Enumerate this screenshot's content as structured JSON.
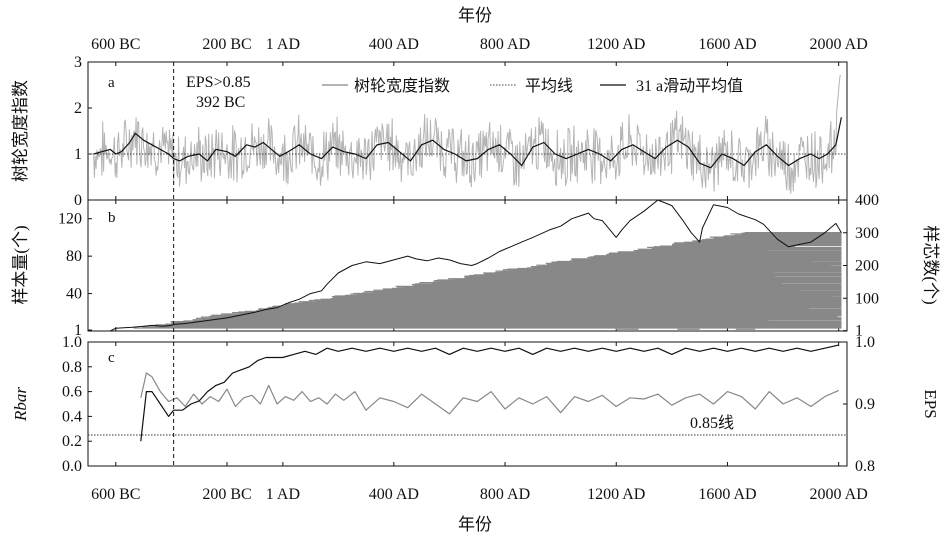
{
  "x_axis": {
    "title": "年份",
    "ticks": [
      {
        "year": -600,
        "label": "600 BC"
      },
      {
        "year": -200,
        "label": "200 BC"
      },
      {
        "year": 1,
        "label": "1 AD"
      },
      {
        "year": 400,
        "label": "400 AD"
      },
      {
        "year": 800,
        "label": "800 AD"
      },
      {
        "year": 1200,
        "label": "1200 AD"
      },
      {
        "year": 1600,
        "label": "1600 AD"
      },
      {
        "year": 2000,
        "label": "2000 AD"
      }
    ],
    "range": [
      -700,
      2030
    ]
  },
  "eps_marker": {
    "year": -392,
    "label_line1": "EPS>0.85",
    "label_line2": "392 BC"
  },
  "chart_data": [
    {
      "panel_label": "a",
      "type": "line",
      "ylabel": "树轮宽度指数",
      "ylim": [
        0,
        3
      ],
      "yticks": [
        0,
        1,
        2,
        3
      ],
      "mean_line": 1.0,
      "legend": {
        "placement": "top",
        "series_index_label": "树轮宽度指数",
        "mean_label": "平均线",
        "smooth_label": "31 a滑动平均值"
      },
      "colors": {
        "index": "#b4b4b4",
        "smooth": "#111111",
        "mean": "#444444"
      },
      "series": [
        {
          "name": "31 a滑动平均值",
          "x": [
            -680,
            -650,
            -620,
            -600,
            -580,
            -550,
            -530,
            -500,
            -470,
            -440,
            -410,
            -392,
            -370,
            -340,
            -300,
            -270,
            -240,
            -200,
            -170,
            -130,
            -100,
            -70,
            -40,
            -10,
            20,
            60,
            100,
            140,
            180,
            220,
            260,
            300,
            340,
            380,
            420,
            460,
            500,
            540,
            580,
            620,
            660,
            700,
            740,
            780,
            820,
            860,
            900,
            940,
            980,
            1020,
            1060,
            1100,
            1140,
            1180,
            1220,
            1260,
            1300,
            1340,
            1380,
            1420,
            1460,
            1500,
            1540,
            1580,
            1620,
            1660,
            1700,
            1740,
            1780,
            1820,
            1860,
            1900,
            1930,
            1960,
            1990,
            2010
          ],
          "values": [
            1.0,
            1.05,
            1.1,
            1.0,
            1.05,
            1.25,
            1.45,
            1.3,
            1.2,
            1.1,
            1.0,
            0.9,
            0.85,
            0.95,
            1.0,
            0.85,
            1.1,
            1.05,
            0.95,
            1.2,
            1.15,
            1.25,
            1.1,
            0.95,
            1.05,
            1.2,
            1.0,
            0.9,
            1.15,
            1.05,
            1.0,
            0.9,
            1.2,
            1.25,
            1.05,
            0.85,
            1.2,
            1.3,
            1.1,
            1.0,
            0.85,
            0.9,
            1.1,
            1.2,
            1.0,
            0.75,
            1.15,
            1.25,
            1.0,
            0.9,
            1.0,
            1.1,
            1.0,
            0.85,
            1.1,
            1.2,
            1.05,
            0.9,
            1.15,
            1.3,
            1.15,
            0.8,
            0.7,
            1.0,
            0.9,
            0.75,
            1.05,
            1.2,
            0.95,
            0.75,
            0.9,
            1.0,
            0.9,
            1.0,
            1.2,
            1.8
          ]
        },
        {
          "name": "树轮宽度指数",
          "envelope": "±0.55 around smooth",
          "end_peak": 2.6
        }
      ]
    },
    {
      "panel_label": "b",
      "type": "line",
      "ylabel": "样本量(个)",
      "y2label": "样芯数(个)",
      "ylim": [
        0,
        140
      ],
      "yticks": [
        1,
        40,
        80,
        120
      ],
      "y2lim": [
        0,
        400
      ],
      "y2ticks": [
        1,
        100,
        200,
        300,
        400
      ],
      "colors": {
        "sample_depth": "#111111",
        "core_spans": "#888888"
      },
      "series": [
        {
          "name": "样本量",
          "x": [
            -680,
            -620,
            -600,
            -540,
            -500,
            -470,
            -430,
            -400,
            -392,
            -350,
            -300,
            -250,
            -200,
            -150,
            -100,
            -60,
            -20,
            20,
            60,
            100,
            140,
            160,
            200,
            250,
            300,
            350,
            400,
            450,
            480,
            520,
            560,
            600,
            640,
            680,
            700,
            740,
            780,
            820,
            860,
            900,
            960,
            1000,
            1040,
            1080,
            1100,
            1120,
            1150,
            1200,
            1220,
            1250,
            1300,
            1350,
            1400,
            1440,
            1470,
            1500,
            1510,
            1550,
            1600,
            1640,
            1700,
            1730,
            1780,
            1820,
            1850,
            1900,
            1950,
            1990,
            2010
          ],
          "values": [
            0,
            0,
            3,
            4,
            5,
            6,
            5,
            6,
            7,
            8,
            10,
            12,
            14,
            17,
            20,
            23,
            25,
            30,
            34,
            40,
            43,
            50,
            62,
            70,
            74,
            72,
            76,
            80,
            77,
            75,
            78,
            76,
            72,
            70,
            72,
            78,
            85,
            90,
            95,
            100,
            108,
            112,
            120,
            124,
            126,
            120,
            118,
            100,
            108,
            118,
            128,
            140,
            134,
            118,
            105,
            95,
            110,
            135,
            132,
            125,
            119,
            114,
            98,
            90,
            92,
            95,
            105,
            115,
            105
          ]
        },
        {
          "name": "样芯数",
          "x": [
            -680,
            -500,
            -392,
            -300,
            -100,
            100,
            300,
            500,
            700,
            900,
            1100,
            1300,
            1500,
            1700,
            1900,
            2010
          ],
          "values": [
            1,
            5,
            12,
            20,
            35,
            55,
            80,
            100,
            120,
            150,
            200,
            250,
            290,
            310,
            320,
            315
          ]
        }
      ]
    },
    {
      "panel_label": "c",
      "type": "line",
      "ylabel": "Rbar",
      "y2label": "EPS",
      "ylim": [
        0.0,
        1.0
      ],
      "yticks": [
        0.0,
        0.2,
        0.4,
        0.6,
        0.8,
        1.0
      ],
      "y2lim": [
        0.8,
        1.0
      ],
      "y2ticks": [
        0.8,
        0.9,
        1.0
      ],
      "threshold": {
        "value": 0.85,
        "axis": "y2",
        "label": "0.85线"
      },
      "colors": {
        "rbar": "#888888",
        "eps": "#111111"
      },
      "series": [
        {
          "name": "Rbar",
          "x": [
            -510,
            -490,
            -470,
            -440,
            -410,
            -380,
            -350,
            -320,
            -290,
            -260,
            -230,
            -200,
            -170,
            -140,
            -110,
            -80,
            -50,
            -20,
            10,
            40,
            70,
            100,
            130,
            160,
            190,
            220,
            260,
            300,
            350,
            400,
            450,
            500,
            550,
            600,
            650,
            700,
            750,
            800,
            850,
            900,
            950,
            1000,
            1050,
            1100,
            1150,
            1200,
            1250,
            1300,
            1350,
            1400,
            1450,
            1500,
            1550,
            1600,
            1650,
            1700,
            1750,
            1800,
            1850,
            1900,
            1950,
            2000
          ],
          "values": [
            0.55,
            0.75,
            0.72,
            0.6,
            0.52,
            0.55,
            0.48,
            0.58,
            0.5,
            0.56,
            0.52,
            0.62,
            0.48,
            0.55,
            0.57,
            0.5,
            0.65,
            0.5,
            0.56,
            0.53,
            0.6,
            0.52,
            0.55,
            0.5,
            0.58,
            0.53,
            0.6,
            0.45,
            0.55,
            0.52,
            0.47,
            0.58,
            0.5,
            0.42,
            0.55,
            0.52,
            0.6,
            0.46,
            0.55,
            0.5,
            0.56,
            0.43,
            0.56,
            0.52,
            0.57,
            0.48,
            0.55,
            0.54,
            0.58,
            0.49,
            0.55,
            0.58,
            0.5,
            0.6,
            0.56,
            0.46,
            0.6,
            0.5,
            0.55,
            0.48,
            0.56,
            0.61
          ]
        },
        {
          "name": "EPS",
          "x": [
            -510,
            -490,
            -470,
            -440,
            -410,
            -392,
            -360,
            -330,
            -300,
            -270,
            -240,
            -210,
            -180,
            -150,
            -120,
            -90,
            -60,
            -30,
            0,
            40,
            80,
            120,
            160,
            200,
            250,
            300,
            350,
            400,
            450,
            500,
            550,
            600,
            650,
            700,
            750,
            800,
            850,
            900,
            950,
            1000,
            1050,
            1100,
            1150,
            1200,
            1250,
            1300,
            1350,
            1400,
            1450,
            1500,
            1550,
            1600,
            1650,
            1700,
            1750,
            1800,
            1850,
            1900,
            1950,
            2000
          ],
          "values": [
            0.84,
            0.92,
            0.92,
            0.9,
            0.88,
            0.89,
            0.89,
            0.9,
            0.905,
            0.92,
            0.93,
            0.935,
            0.95,
            0.955,
            0.96,
            0.97,
            0.975,
            0.975,
            0.975,
            0.98,
            0.985,
            0.98,
            0.99,
            0.985,
            0.99,
            0.985,
            0.99,
            0.985,
            0.99,
            0.985,
            0.99,
            0.98,
            0.99,
            0.985,
            0.99,
            0.985,
            0.99,
            0.98,
            0.99,
            0.985,
            0.99,
            0.985,
            0.99,
            0.985,
            0.99,
            0.985,
            0.99,
            0.98,
            0.99,
            0.985,
            0.99,
            0.985,
            0.99,
            0.985,
            0.99,
            0.985,
            0.99,
            0.985,
            0.99,
            0.995
          ]
        }
      ]
    }
  ]
}
